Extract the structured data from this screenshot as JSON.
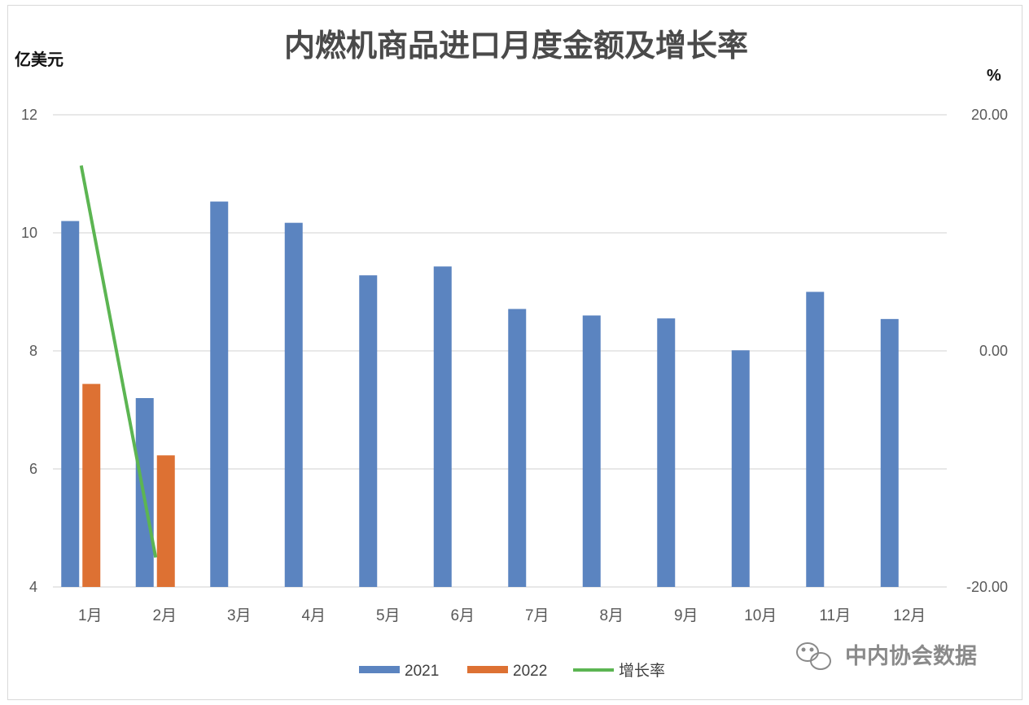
{
  "chart_data": {
    "type": "bar",
    "title": "内燃机商品进口月度金额及增长率",
    "y_left_unit": "亿美元",
    "y_right_unit": "%",
    "categories": [
      "1月",
      "2月",
      "3月",
      "4月",
      "5月",
      "6月",
      "7月",
      "8月",
      "9月",
      "10月",
      "11月",
      "12月"
    ],
    "y_left_ticks": [
      "4",
      "6",
      "8",
      "10",
      "12"
    ],
    "y_right_ticks": [
      "-20.00",
      "0.00",
      "20.00"
    ],
    "ylim_left": [
      4,
      12
    ],
    "ylim_right": [
      -20,
      20
    ],
    "grid": true,
    "legend_position": "bottom",
    "series": [
      {
        "name": "2021",
        "kind": "bar",
        "axis": "left",
        "color": "#5b84c0",
        "values": [
          10.2,
          7.2,
          10.53,
          10.17,
          9.28,
          9.43,
          8.71,
          8.6,
          8.55,
          8.01,
          9.0,
          8.54
        ]
      },
      {
        "name": "2022",
        "kind": "bar",
        "axis": "left",
        "color": "#dd7133",
        "values": [
          7.44,
          6.23,
          null,
          null,
          null,
          null,
          null,
          null,
          null,
          null,
          null,
          null
        ]
      },
      {
        "name": "增长率",
        "kind": "line",
        "axis": "right",
        "color": "#5cb552",
        "values": [
          15.7,
          -17.5,
          null,
          null,
          null,
          null,
          null,
          null,
          null,
          null,
          null,
          null
        ]
      }
    ]
  },
  "watermark": {
    "text": "中内协会数据",
    "icon": "wechat-icon"
  }
}
